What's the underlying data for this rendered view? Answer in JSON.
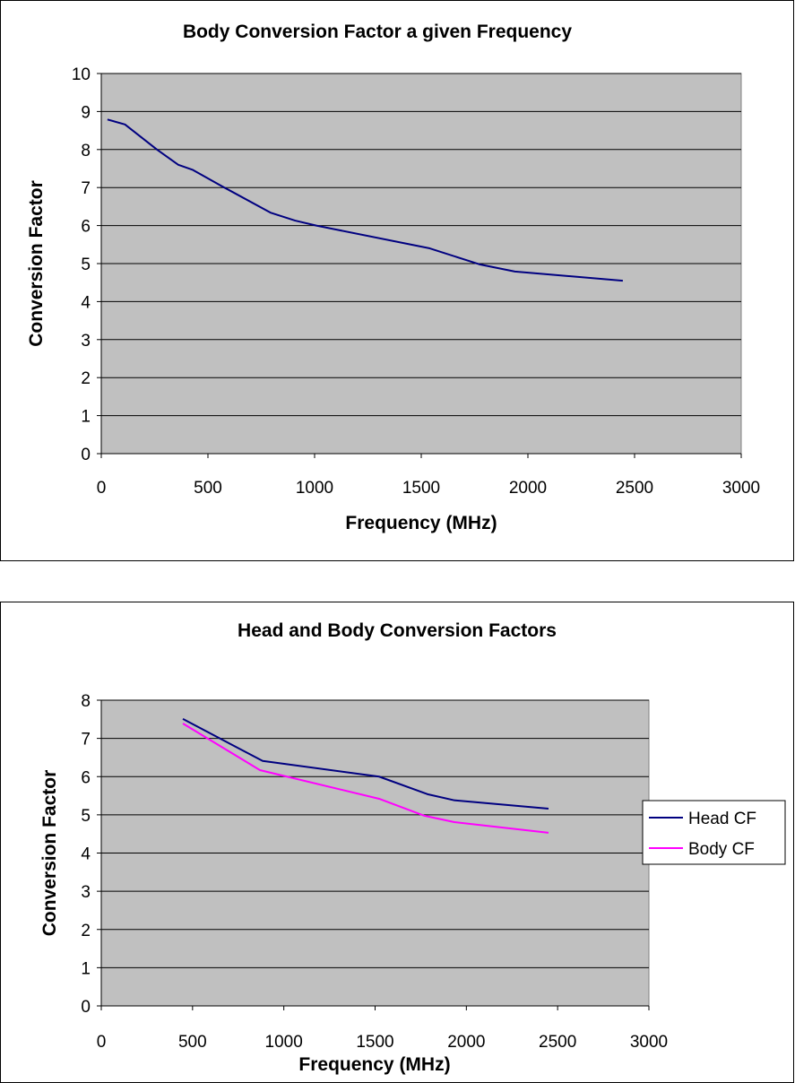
{
  "chart_data": [
    {
      "type": "line",
      "title": "Body Conversion Factor a given Frequency",
      "xlabel": "Frequency (MHz)",
      "ylabel": "Conversion Factor",
      "xlim": [
        0,
        3000
      ],
      "ylim": [
        0,
        10
      ],
      "xticks": [
        0,
        500,
        1000,
        1500,
        2000,
        2500,
        3000
      ],
      "yticks": [
        0,
        1,
        2,
        3,
        4,
        5,
        6,
        7,
        8,
        9,
        10
      ],
      "grid": "horizontal",
      "background": "#c0c0c0",
      "series": [
        {
          "color": "#000080",
          "x": [
            29,
            111,
            261,
            361,
            427,
            577,
            793,
            909,
            1008,
            1540,
            1773,
            1939,
            2445
          ],
          "y": [
            8.79,
            8.66,
            8.0,
            7.6,
            7.47,
            7.0,
            6.34,
            6.13,
            6.0,
            5.4,
            4.98,
            4.79,
            4.55
          ]
        }
      ]
    },
    {
      "type": "line",
      "title": "Head and Body Conversion Factors",
      "xlabel": "Frequency (MHz)",
      "ylabel": "Conversion Factor",
      "xlim": [
        0,
        3000
      ],
      "ylim": [
        0,
        8
      ],
      "xticks": [
        0,
        500,
        1000,
        1500,
        2000,
        2500,
        3000
      ],
      "yticks": [
        0,
        1,
        2,
        3,
        4,
        5,
        6,
        7,
        8
      ],
      "grid": "horizontal",
      "background": "#c0c0c0",
      "legend": "right",
      "series": [
        {
          "name": "Head CF",
          "color": "#000080",
          "x": [
            447,
            884,
            1522,
            1787,
            1934,
            2450
          ],
          "y": [
            7.51,
            6.41,
            6.0,
            5.54,
            5.38,
            5.16
          ]
        },
        {
          "name": "Body CF",
          "color": "#ff00ff",
          "x": [
            447,
            869,
            1522,
            1767,
            1934,
            2450
          ],
          "y": [
            7.39,
            6.17,
            5.42,
            4.98,
            4.81,
            4.53
          ]
        }
      ]
    }
  ]
}
